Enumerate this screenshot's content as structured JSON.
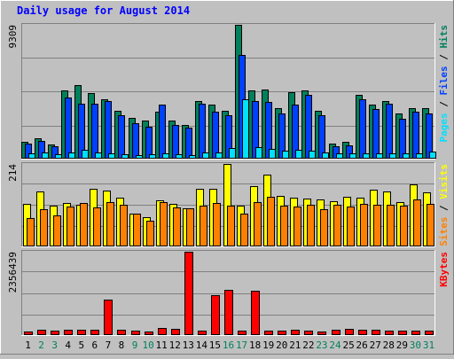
{
  "chart_data": {
    "type": "bar",
    "title": "Daily usage for August 2014",
    "categories": [
      "1",
      "2",
      "3",
      "4",
      "5",
      "6",
      "7",
      "8",
      "9",
      "10",
      "11",
      "12",
      "13",
      "14",
      "15",
      "16",
      "17",
      "18",
      "19",
      "20",
      "21",
      "22",
      "23",
      "24",
      "25",
      "26",
      "27",
      "28",
      "29",
      "30",
      "31"
    ],
    "weekend_categories": [
      "2",
      "3",
      "9",
      "10",
      "16",
      "17",
      "23",
      "24",
      "30",
      "31"
    ],
    "panels": [
      {
        "id": "pages-files-hits",
        "max_label": "9309",
        "ylim": [
          0,
          9309
        ],
        "right_label": [
          "Pages",
          "Files",
          "Hits"
        ],
        "series": [
          {
            "name": "Hits",
            "values": [
              1120,
              1380,
              900,
              4700,
              5100,
              4500,
              4100,
              3300,
              2800,
              2600,
              3200,
              2600,
              2300,
              4000,
              3700,
              3300,
              9309,
              4700,
              4800,
              3500,
              4600,
              4700,
              3300,
              1000,
              1100,
              4400,
              3700,
              4000,
              3100,
              3500,
              3500
            ]
          },
          {
            "name": "Files",
            "values": [
              980,
              1150,
              790,
              4200,
              3800,
              3800,
              4000,
              3000,
              2400,
              2150,
              3700,
              2300,
              2100,
              3800,
              3200,
              3000,
              7200,
              4000,
              3900,
              3100,
              3700,
              4400,
              3000,
              800,
              840,
              4100,
              3400,
              3800,
              2700,
              3200,
              3100
            ]
          },
          {
            "name": "Pages",
            "values": [
              290,
              370,
              270,
              370,
              540,
              370,
              300,
              230,
              210,
              240,
              290,
              250,
              210,
              380,
              380,
              670,
              4100,
              770,
              640,
              480,
              570,
              500,
              400,
              300,
              300,
              300,
              300,
              300,
              300,
              340,
              440
            ]
          }
        ]
      },
      {
        "id": "visits-sites",
        "max_label": "214",
        "ylim": [
          0,
          214
        ],
        "right_label": [
          "Sites",
          "Visits"
        ],
        "series": [
          {
            "name": "Visits",
            "values": [
              110,
              142,
              105,
              112,
              108,
              150,
              145,
              125,
              84,
              74,
              118,
              110,
              97,
              150,
              150,
              214,
              104,
              156,
              186,
              131,
              125,
              124,
              122,
              116,
              128,
              125,
              146,
              141,
              115,
              160,
              140
            ]
          },
          {
            "name": "Sites",
            "values": [
              72,
              95,
              79,
              103,
              112,
              100,
              113,
              108,
              84,
              66,
              115,
              99,
              97,
              104,
              112,
              104,
              84,
              114,
              128,
              105,
              102,
              108,
              96,
              107,
              103,
              110,
              107,
              107,
              104,
              120,
              110
            ]
          }
        ]
      },
      {
        "id": "kbytes",
        "max_label": "2356439",
        "ylim": [
          0,
          2356439
        ],
        "right_label": [
          "KBytes"
        ],
        "series": [
          {
            "name": "KBytes",
            "values": [
              70000,
              130000,
              90000,
              120000,
              130000,
              130000,
              1000000,
              130000,
              90000,
              80000,
              180000,
              150000,
              2356439,
              110000,
              1120000,
              1260000,
              90000,
              1250000,
              110000,
              110000,
              120000,
              90000,
              70000,
              120000,
              140000,
              130000,
              130000,
              90000,
              90000,
              90000,
              110000
            ]
          }
        ]
      }
    ],
    "colors": {
      "Hits": "#00805c",
      "Files": "#0040ff",
      "Pages": "#00e0ff",
      "Visits": "#ffff00",
      "Sites": "#ff8000",
      "KBytes": "#ff0000",
      "title": "#0000ff",
      "weekday_label": "#000000",
      "weekend_label": "#00805c"
    }
  }
}
